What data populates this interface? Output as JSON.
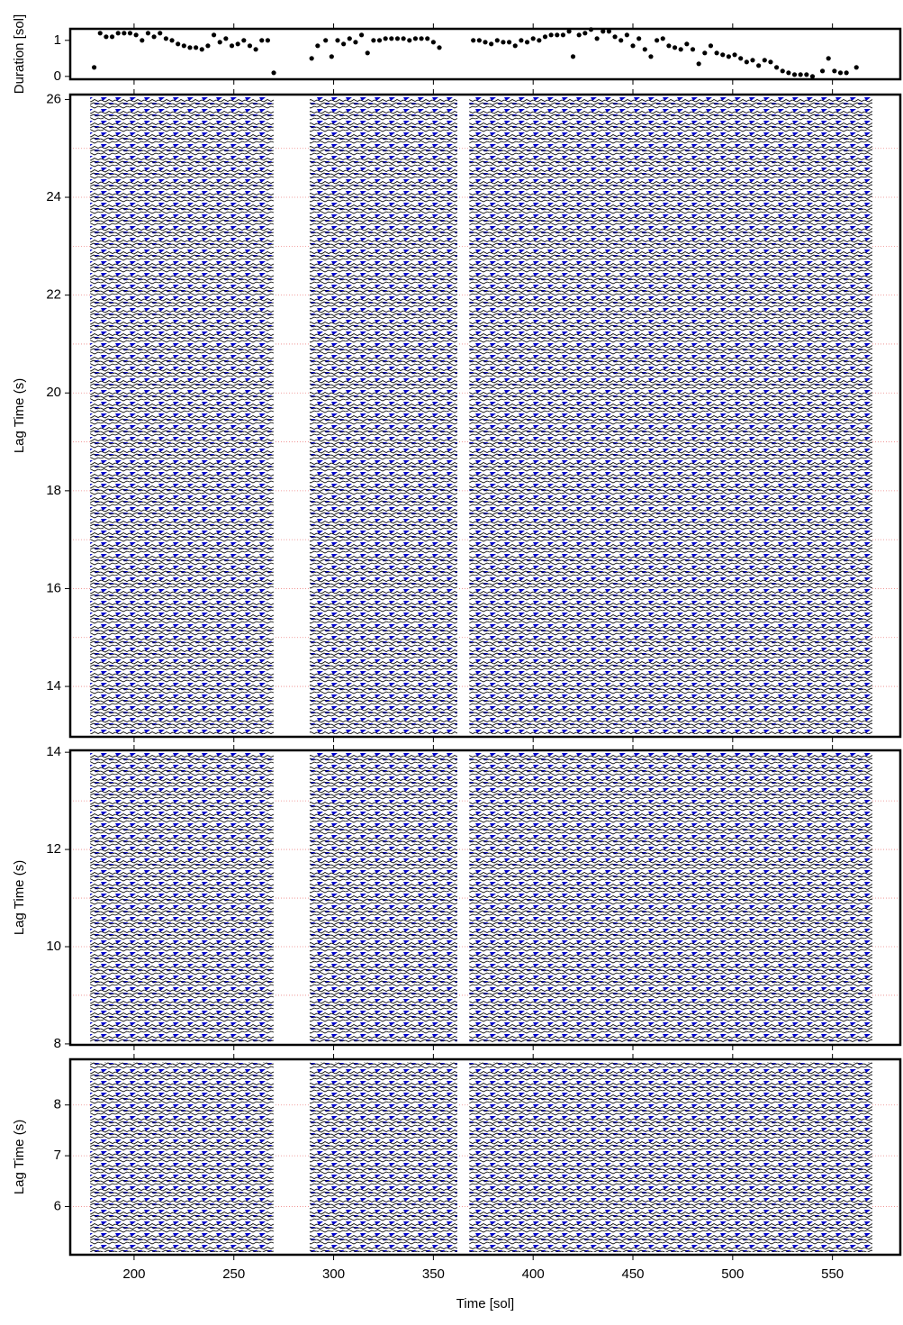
{
  "chart_data": [
    {
      "type": "scatter",
      "ylabel": "Duration [sol]",
      "color": "#000000",
      "xlim": [
        168,
        584
      ],
      "xticks": [
        200,
        250,
        300,
        350,
        400,
        450,
        500,
        550
      ],
      "ylim": [
        -0.08,
        1.32
      ],
      "yticks": [
        0,
        1
      ],
      "x": [
        180,
        183,
        186,
        189,
        192,
        195,
        198,
        201,
        204,
        207,
        210,
        213,
        216,
        219,
        222,
        225,
        228,
        231,
        234,
        237,
        240,
        243,
        246,
        249,
        252,
        255,
        258,
        261,
        264,
        267,
        270,
        289,
        292,
        296,
        299,
        302,
        305,
        308,
        311,
        314,
        317,
        320,
        323,
        326,
        329,
        332,
        335,
        338,
        341,
        344,
        347,
        350,
        353,
        370,
        373,
        376,
        379,
        382,
        385,
        388,
        391,
        394,
        397,
        400,
        403,
        406,
        409,
        412,
        415,
        418,
        420,
        423,
        426,
        429,
        432,
        435,
        438,
        441,
        444,
        447,
        450,
        453,
        456,
        459,
        462,
        465,
        468,
        471,
        474,
        477,
        480,
        483,
        486,
        489,
        492,
        495,
        498,
        501,
        504,
        507,
        510,
        513,
        516,
        519,
        522,
        525,
        528,
        531,
        534,
        537,
        540,
        545,
        548,
        551,
        554,
        557,
        562
      ],
      "values": [
        0.25,
        1.2,
        1.1,
        1.1,
        1.2,
        1.2,
        1.2,
        1.15,
        1.0,
        1.2,
        1.1,
        1.2,
        1.05,
        1.0,
        0.9,
        0.85,
        0.8,
        0.8,
        0.75,
        0.85,
        1.15,
        0.95,
        1.05,
        0.85,
        0.9,
        1.0,
        0.85,
        0.75,
        1.0,
        1.0,
        0.1,
        0.5,
        0.85,
        1.0,
        0.55,
        1.0,
        0.9,
        1.05,
        0.95,
        1.15,
        0.65,
        1.0,
        1.0,
        1.05,
        1.05,
        1.05,
        1.05,
        1.0,
        1.05,
        1.05,
        1.05,
        0.95,
        0.8,
        1.0,
        1.0,
        0.95,
        0.9,
        1.0,
        0.95,
        0.95,
        0.85,
        1.0,
        0.95,
        1.05,
        1.0,
        1.1,
        1.15,
        1.15,
        1.15,
        1.25,
        0.55,
        1.15,
        1.2,
        1.3,
        1.05,
        1.25,
        1.25,
        1.1,
        1.0,
        1.15,
        0.85,
        1.05,
        0.75,
        0.55,
        1.0,
        1.05,
        0.85,
        0.8,
        0.75,
        0.9,
        0.75,
        0.35,
        0.65,
        0.85,
        0.65,
        0.6,
        0.55,
        0.6,
        0.5,
        0.4,
        0.45,
        0.3,
        0.45,
        0.4,
        0.25,
        0.15,
        0.1,
        0.05,
        0.05,
        0.05,
        0.0,
        0.15,
        0.5,
        0.15,
        0.1,
        0.1,
        0.25
      ]
    },
    {
      "type": "wiggle",
      "ylabel": "Lag Time (s)",
      "color": "#0000cc",
      "xlim": [
        168,
        584
      ],
      "xticks": [
        200,
        250,
        300,
        350,
        400,
        450,
        500,
        550
      ],
      "ylim": [
        12.97,
        26.1
      ],
      "yticks": [
        14,
        16,
        18,
        20,
        22,
        24,
        26
      ],
      "ygrid": [
        14,
        15,
        16,
        17,
        18,
        19,
        20,
        21,
        22,
        23,
        24,
        25
      ],
      "trace_spans": [
        [
          178,
          270
        ],
        [
          288,
          362
        ],
        [
          368,
          570
        ]
      ]
    },
    {
      "type": "wiggle",
      "ylabel": "Lag Time (s)",
      "color": "#0000cc",
      "xlim": [
        168,
        584
      ],
      "xticks": [
        200,
        250,
        300,
        350,
        400,
        450,
        500,
        550
      ],
      "ylim": [
        7.98,
        14.04
      ],
      "yticks": [
        8,
        10,
        12,
        14
      ],
      "ygrid": [
        9,
        10,
        11,
        12,
        13
      ],
      "trace_spans": [
        [
          178,
          270
        ],
        [
          288,
          362
        ],
        [
          368,
          570
        ]
      ]
    },
    {
      "type": "wiggle",
      "ylabel": "Lag Time (s)",
      "xlabel": "Time [sol]",
      "color": "#0000cc",
      "xlim": [
        168,
        584
      ],
      "xticks": [
        200,
        250,
        300,
        350,
        400,
        450,
        500,
        550
      ],
      "ylim": [
        5.05,
        8.9
      ],
      "yticks": [
        6,
        7,
        8
      ],
      "ygrid": [
        6,
        7,
        8
      ],
      "trace_spans": [
        [
          178,
          270
        ],
        [
          288,
          362
        ],
        [
          368,
          570
        ]
      ]
    }
  ]
}
